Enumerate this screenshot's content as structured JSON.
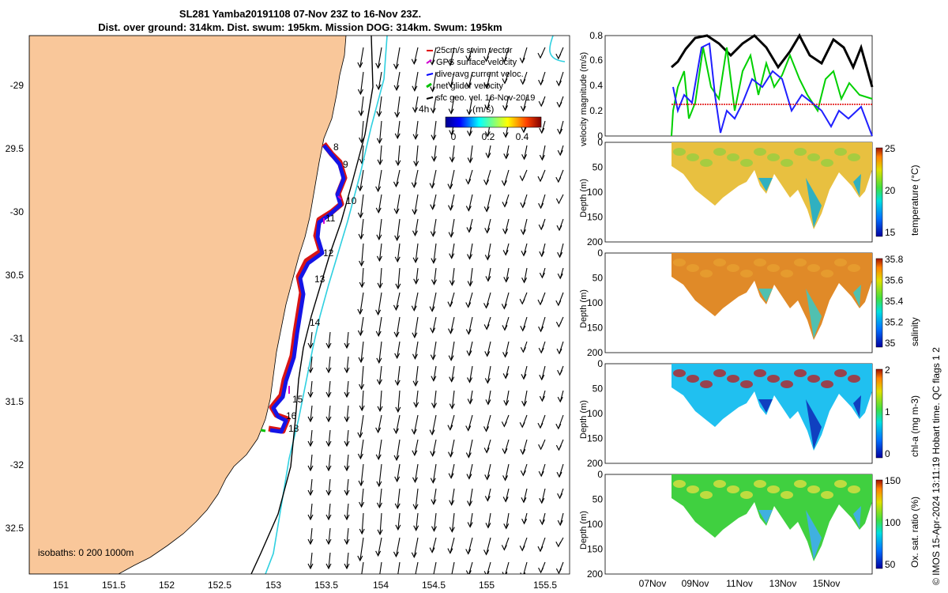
{
  "title": {
    "line1": "SL281 Yamba20191108 07-Nov 23Z to 16-Nov 23Z.",
    "line2": "Dist. over ground: 314km. Dist. swum: 195km. Mission DOG: 314km. Swum: 195km"
  },
  "map": {
    "lon_ticks": [
      "151",
      "151.5",
      "152",
      "152.5",
      "153",
      "153.5",
      "154",
      "154.5",
      "155",
      "155.5"
    ],
    "lat_ticks": [
      "-29",
      "29.5",
      "-30",
      "30.5",
      "-31",
      "31.5",
      "-32",
      "32.5"
    ],
    "legend": [
      {
        "label": "25cm/s swim vector",
        "color": "#e00000"
      },
      {
        "label": "GPS surface velocity",
        "color": "#d000d0"
      },
      {
        "label": "dive-avg current veloc.",
        "color": "#0000ff"
      },
      {
        "label": "net glider velocity",
        "color": "#00c000"
      },
      {
        "label": "sfc geo. vel. 16-Nov-2019",
        "color": "#000000"
      }
    ],
    "colorbar_unit": "(m/s)",
    "colorbar_ticks": [
      "0",
      "0.2",
      "0.4"
    ],
    "colors": {
      "land": "#f9c79a",
      "track_blue": "#1414e6",
      "track_red": "#d81414",
      "isobath_cyan": "#2fd0e0"
    },
    "label_4h": "4h",
    "day_labels": [
      "8",
      "9",
      "10",
      "11",
      "12",
      "13",
      "14",
      "15",
      "16",
      "18"
    ],
    "isobaths_label": "isobaths: 0   200  1000m"
  },
  "panels": {
    "velocity": {
      "ylabel": "velocity magnitude (m/s)",
      "yticks": [
        "0",
        "0.2",
        "0.4",
        "0.6",
        "0.8"
      ]
    },
    "temperature": {
      "ylabel": "Depth (m)",
      "clabel": "temperature (°C)",
      "cticks": [
        "25",
        "20",
        "15"
      ]
    },
    "salinity": {
      "ylabel": "Depth (m)",
      "clabel": "salinity",
      "cticks": [
        "35.8",
        "35.6",
        "35.4",
        "35.2",
        "35"
      ]
    },
    "chla": {
      "ylabel": "Depth (m)",
      "clabel": "chl-a (mg m-3)",
      "cticks": [
        "2",
        "1",
        "0"
      ]
    },
    "oxygen": {
      "ylabel": "Depth (m)",
      "clabel": "Ox. sat. ratio (%)",
      "cticks": [
        "150",
        "100",
        "50"
      ]
    },
    "depth_ticks": [
      "0",
      "50",
      "100",
      "150",
      "200"
    ],
    "date_ticks": [
      "07Nov",
      "09Nov",
      "11Nov",
      "13Nov",
      "15Nov"
    ]
  },
  "credit": "© IMOS 15-Apr-2024 13:11:19 Hobart time. QC flags 1  2"
}
